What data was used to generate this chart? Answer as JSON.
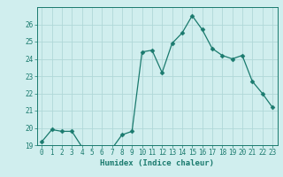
{
  "x": [
    0,
    1,
    2,
    3,
    4,
    5,
    6,
    7,
    8,
    9,
    10,
    11,
    12,
    13,
    14,
    15,
    16,
    17,
    18,
    19,
    20,
    21,
    22,
    23
  ],
  "y": [
    19.2,
    19.9,
    19.8,
    19.8,
    18.9,
    18.85,
    18.8,
    18.8,
    19.6,
    19.8,
    24.4,
    24.5,
    23.2,
    24.9,
    25.5,
    26.5,
    25.7,
    24.6,
    24.2,
    24.0,
    24.2,
    22.7,
    22.0,
    21.2
  ],
  "line_color": "#1a7a6e",
  "marker": "D",
  "marker_size": 2.5,
  "bg_color": "#d0eeee",
  "grid_color": "#b0d8d8",
  "xlabel": "Humidex (Indice chaleur)",
  "ylim": [
    19,
    27
  ],
  "xlim": [
    -0.5,
    23.5
  ],
  "yticks": [
    19,
    20,
    21,
    22,
    23,
    24,
    25,
    26
  ],
  "xticks": [
    0,
    1,
    2,
    3,
    4,
    5,
    6,
    7,
    8,
    9,
    10,
    11,
    12,
    13,
    14,
    15,
    16,
    17,
    18,
    19,
    20,
    21,
    22,
    23
  ],
  "tick_color": "#1a7a6e",
  "label_fontsize": 6.5,
  "tick_fontsize": 5.5
}
